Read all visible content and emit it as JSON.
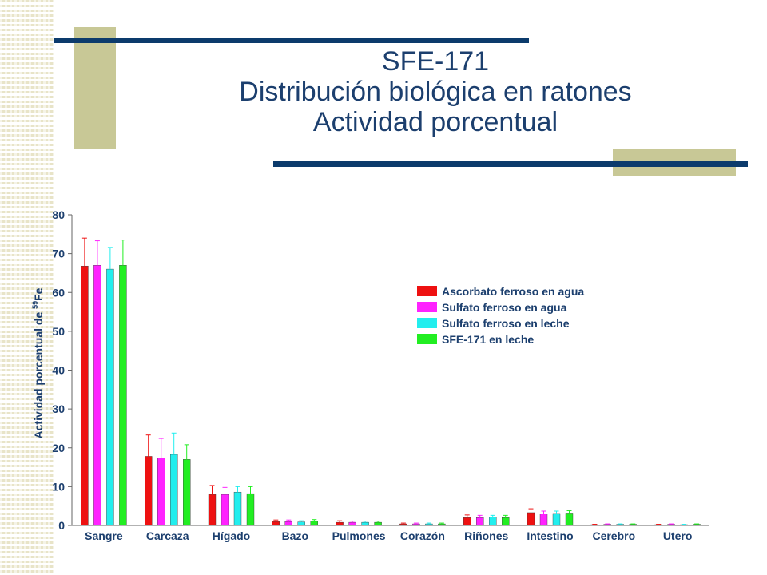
{
  "title": {
    "line1": "SFE-171",
    "line2": "Distribución biológica en ratones",
    "line3": "Actividad porcentual"
  },
  "chart_data": {
    "type": "bar",
    "ylabel": "Actividad porcentual de ",
    "ylabel_sup": "59",
    "ylabel_tail": "Fe",
    "xlabel": "",
    "ylim": [
      0,
      80
    ],
    "yticks": [
      "0",
      "10",
      "20",
      "30",
      "40",
      "50",
      "60",
      "70",
      "80"
    ],
    "grid": false,
    "legend_position": "top-right",
    "categories": [
      "Sangre",
      "Carcaza",
      "Hígado",
      "Bazo",
      "Pulmones",
      "Corazón",
      "Riñones",
      "Intestino",
      "Cerebro",
      "Utero"
    ],
    "series": [
      {
        "name": "Ascorbato ferroso en agua",
        "color": "#ee1111",
        "values": [
          66.8,
          17.8,
          8.0,
          1.0,
          0.8,
          0.4,
          2.0,
          3.3,
          0.2,
          0.2
        ],
        "errors": [
          7.2,
          5.5,
          2.3,
          0.4,
          0.4,
          0.2,
          0.7,
          1.0,
          0.1,
          0.1
        ]
      },
      {
        "name": "Sulfato ferroso en agua",
        "color": "#ff22ff",
        "values": [
          67.0,
          17.4,
          8.0,
          1.0,
          0.8,
          0.4,
          2.0,
          3.0,
          0.3,
          0.3
        ],
        "errors": [
          6.3,
          5.0,
          1.8,
          0.4,
          0.3,
          0.2,
          0.6,
          0.7,
          0.1,
          0.1
        ]
      },
      {
        "name": "Sulfato ferroso en leche",
        "color": "#22eeee",
        "values": [
          66.0,
          18.3,
          8.6,
          0.9,
          0.8,
          0.4,
          2.1,
          3.1,
          0.3,
          0.2
        ],
        "errors": [
          5.6,
          5.5,
          1.4,
          0.3,
          0.3,
          0.2,
          0.5,
          0.6,
          0.1,
          0.1
        ]
      },
      {
        "name": "SFE-171 en leche",
        "color": "#22ee22",
        "values": [
          67.0,
          17.0,
          8.2,
          1.1,
          0.8,
          0.4,
          2.0,
          3.2,
          0.3,
          0.3
        ],
        "errors": [
          6.5,
          3.8,
          1.8,
          0.4,
          0.3,
          0.2,
          0.6,
          0.6,
          0.1,
          0.1
        ]
      }
    ]
  }
}
